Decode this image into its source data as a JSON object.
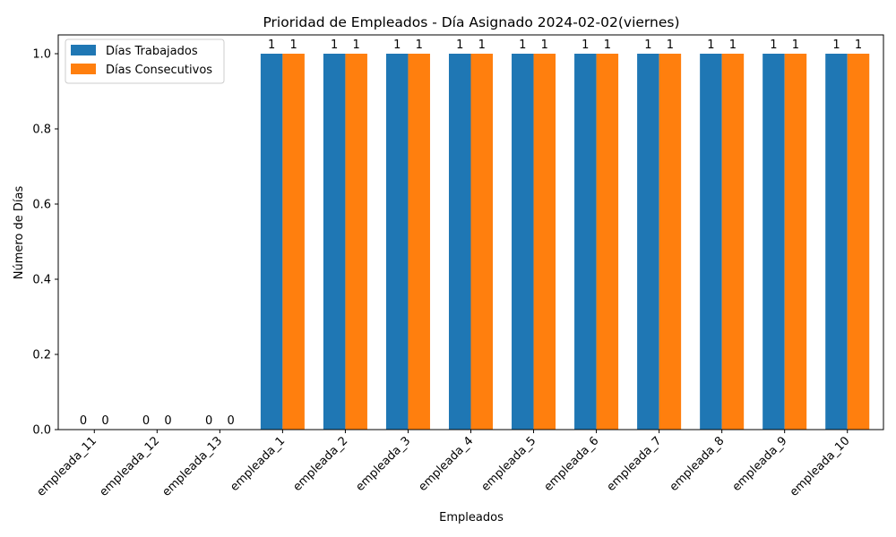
{
  "chart_data": {
    "type": "bar",
    "title": "Prioridad de Empleados - Día Asignado 2024-02-02(viernes)",
    "xlabel": "Empleados",
    "ylabel": "Número de Días",
    "categories": [
      "empleada_11",
      "empleada_12",
      "empleada_13",
      "empleada_1",
      "empleada_2",
      "empleada_3",
      "empleada_4",
      "empleada_5",
      "empleada_6",
      "empleada_7",
      "empleada_8",
      "empleada_9",
      "empleada_10"
    ],
    "series": [
      {
        "name": "Días Trabajados",
        "color": "#1f77b4",
        "values": [
          0,
          0,
          0,
          1,
          1,
          1,
          1,
          1,
          1,
          1,
          1,
          1,
          1
        ]
      },
      {
        "name": "Días Consecutivos",
        "color": "#ff7f0e",
        "values": [
          0,
          0,
          0,
          1,
          1,
          1,
          1,
          1,
          1,
          1,
          1,
          1,
          1
        ]
      }
    ],
    "ylim": [
      0,
      1.05
    ],
    "yticks": [
      "0.0",
      "0.2",
      "0.4",
      "0.6",
      "0.8",
      "1.0"
    ],
    "legend_position": "top-left",
    "grid": false
  }
}
